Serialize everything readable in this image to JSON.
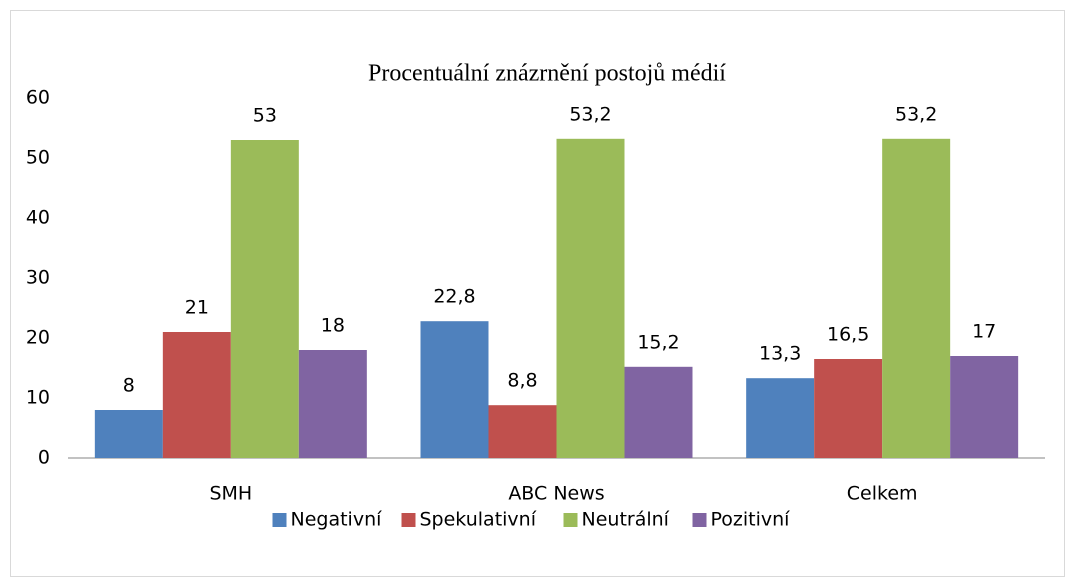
{
  "chart_data": {
    "type": "bar",
    "title": "Procentuální znázrnění postojů médií",
    "categories": [
      "SMH",
      "ABC News",
      "Celkem"
    ],
    "series": [
      {
        "name": "Negativní",
        "color": "#4f81bd",
        "values": [
          8,
          22.8,
          13.3
        ],
        "value_labels": [
          "8",
          "22,8",
          "13,3"
        ]
      },
      {
        "name": "Spekulativní",
        "color": "#c0504d",
        "values": [
          21,
          8.8,
          16.5
        ],
        "value_labels": [
          "21",
          "8,8",
          "16,5"
        ]
      },
      {
        "name": "Neutrální",
        "color": "#9bbb59",
        "values": [
          53,
          53.2,
          53.2
        ],
        "value_labels": [
          "53",
          "53,2",
          "53,2"
        ]
      },
      {
        "name": "Pozitivní",
        "color": "#8064a2",
        "values": [
          18,
          15.2,
          17
        ],
        "value_labels": [
          "18",
          "15,2",
          "17"
        ]
      }
    ],
    "ylim": [
      0,
      60
    ],
    "yticks": [
      0,
      10,
      20,
      30,
      40,
      50,
      60
    ],
    "grid": false,
    "legend": "bottom"
  }
}
